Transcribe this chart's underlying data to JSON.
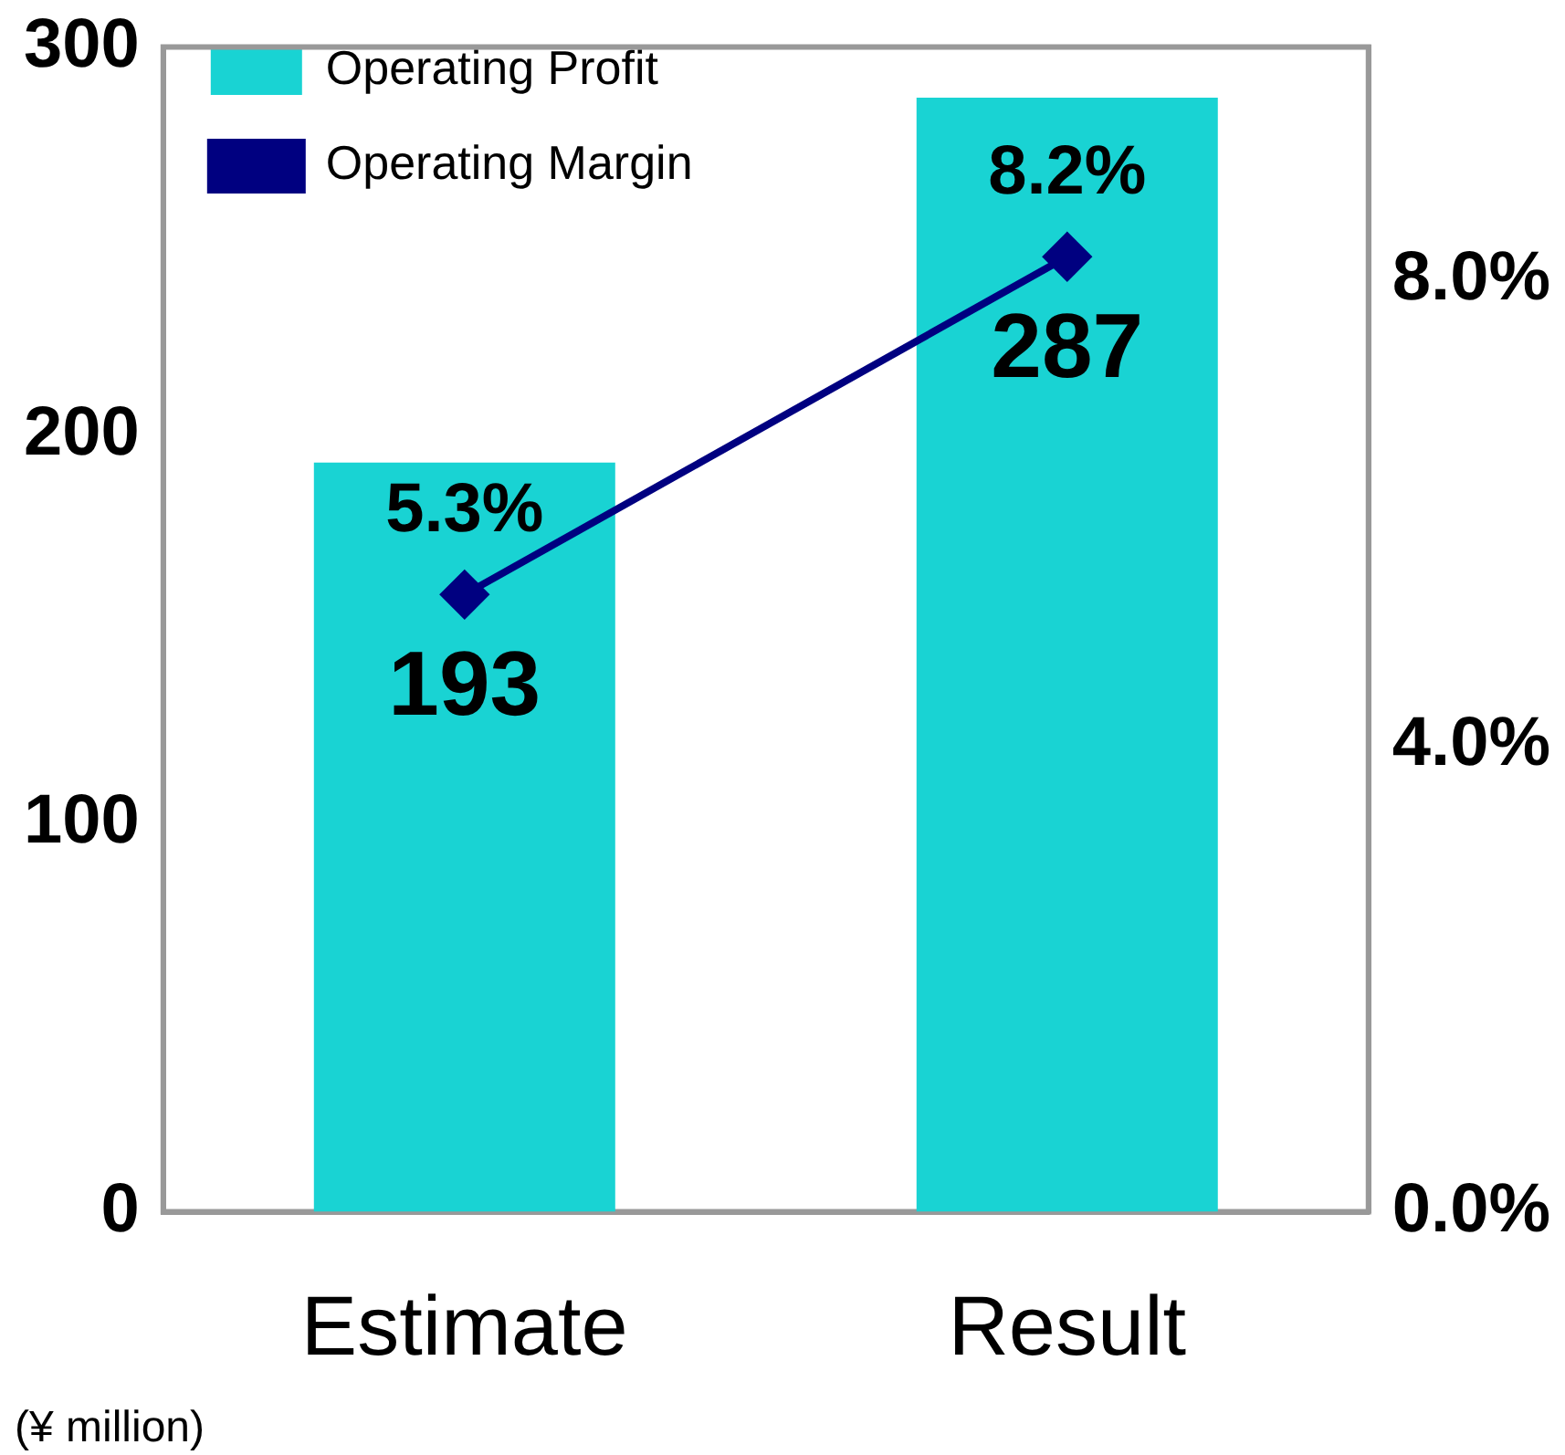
{
  "chart_data": {
    "type": "bar",
    "categories": [
      "Estimate",
      "Result"
    ],
    "series": [
      {
        "name": "Operating Profit",
        "color": "#19d3d3",
        "values": [
          193,
          287
        ],
        "value_labels": [
          "193",
          "287"
        ]
      },
      {
        "name": "Operating Margin",
        "type": "line",
        "axis": "y2",
        "color": "#000080",
        "values": [
          5.3,
          8.2
        ],
        "value_labels": [
          "5.3%",
          "8.2%"
        ],
        "marker": "diamond"
      }
    ],
    "ylim": [
      0,
      300
    ],
    "yticks": [
      0,
      100,
      200,
      300
    ],
    "y2lim": [
      0,
      10
    ],
    "y2ticks": [
      {
        "value": 0,
        "label": "0.0%"
      },
      {
        "value": 4,
        "label": "4.0%"
      },
      {
        "value": 8,
        "label": "8.0%"
      }
    ],
    "grid": false,
    "legend": "top left",
    "annotations": [
      "(¥ million)"
    ]
  }
}
